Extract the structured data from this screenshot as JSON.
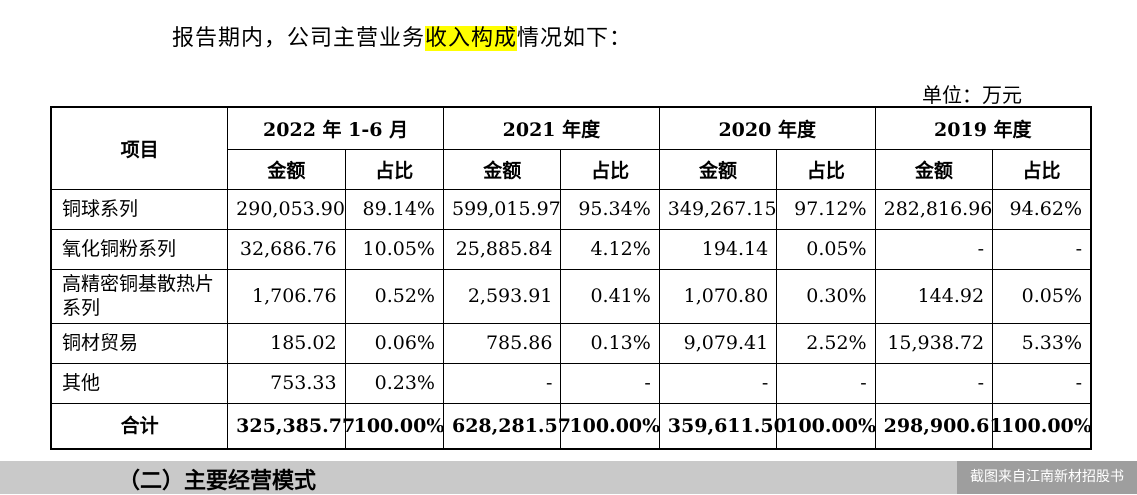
{
  "intro": {
    "before": "报告期内，公司主营业务",
    "highlight": "收入构成",
    "after": "情况如下："
  },
  "unit": "单位：万元",
  "table": {
    "item_header": "项目",
    "periods": [
      "2022 年 1-6 月",
      "2021 年度",
      "2020 年度",
      "2019 年度"
    ],
    "sub_headers": {
      "amount": "金额",
      "ratio": "占比"
    },
    "rows": [
      {
        "name": "铜球系列",
        "cells": [
          "290,053.90",
          "89.14%",
          "599,015.97",
          "95.34%",
          "349,267.15",
          "97.12%",
          "282,816.96",
          "94.62%"
        ]
      },
      {
        "name": "氧化铜粉系列",
        "cells": [
          "32,686.76",
          "10.05%",
          "25,885.84",
          "4.12%",
          "194.14",
          "0.05%",
          "-",
          "-"
        ]
      },
      {
        "name": "高精密铜基散热片系列",
        "cells": [
          "1,706.76",
          "0.52%",
          "2,593.91",
          "0.41%",
          "1,070.80",
          "0.30%",
          "144.92",
          "0.05%"
        ]
      },
      {
        "name": "铜材贸易",
        "cells": [
          "185.02",
          "0.06%",
          "785.86",
          "0.13%",
          "9,079.41",
          "2.52%",
          "15,938.72",
          "5.33%"
        ]
      },
      {
        "name": "其他",
        "cells": [
          "753.33",
          "0.23%",
          "-",
          "-",
          "-",
          "-",
          "-",
          "-"
        ]
      }
    ],
    "total": {
      "name": "合计",
      "cells": [
        "325,385.77",
        "100.00%",
        "628,281.57",
        "100.00%",
        "359,611.50",
        "100.00%",
        "298,900.61",
        "100.00%"
      ]
    }
  },
  "section_title": "（二）主要经营模式",
  "watermark": "截图来自江南新材招股书"
}
